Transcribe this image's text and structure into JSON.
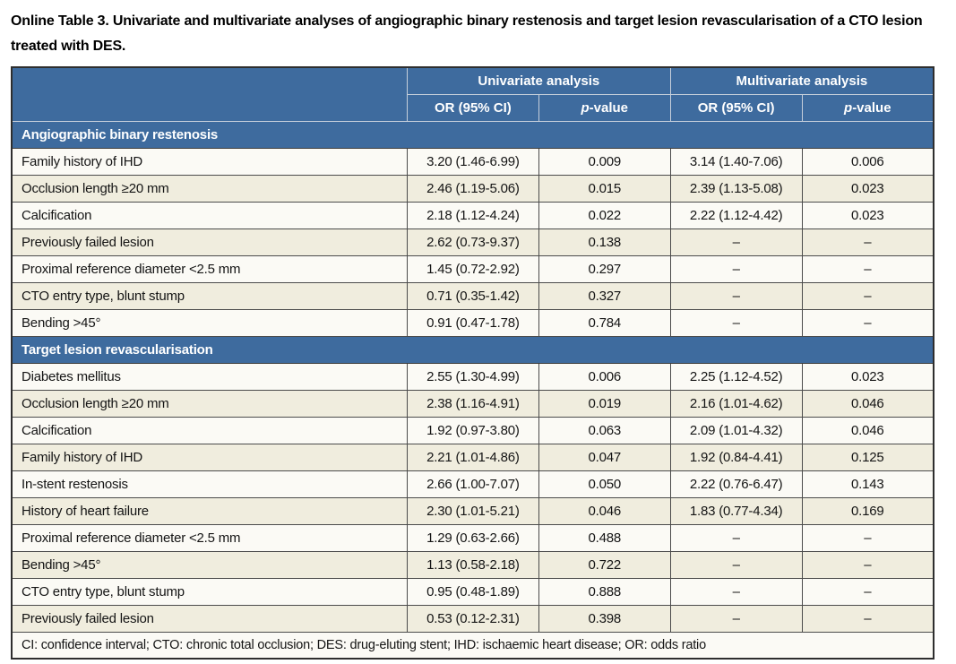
{
  "title": "Online Table 3. Univariate and multivariate analyses of angiographic binary restenosis and target lesion revascularisation of a CTO lesion treated with DES.",
  "table": {
    "group_headers": [
      "Univariate analysis",
      "Multivariate analysis"
    ],
    "column_headers": {
      "or": "OR (95% CI)",
      "p_italic": "p",
      "p_rest": "-value"
    },
    "sections": [
      {
        "label": "Angiographic binary restenosis",
        "rows": [
          {
            "label": "Family history of IHD",
            "uni_or": "3.20 (1.46-6.99)",
            "uni_p": "0.009",
            "multi_or": "3.14 (1.40-7.06)",
            "multi_p": "0.006"
          },
          {
            "label": "Occlusion length ≥20 mm",
            "uni_or": "2.46 (1.19-5.06)",
            "uni_p": "0.015",
            "multi_or": "2.39 (1.13-5.08)",
            "multi_p": "0.023"
          },
          {
            "label": "Calcification",
            "uni_or": "2.18 (1.12-4.24)",
            "uni_p": "0.022",
            "multi_or": "2.22 (1.12-4.42)",
            "multi_p": "0.023"
          },
          {
            "label": "Previously failed lesion",
            "uni_or": "2.62 (0.73-9.37)",
            "uni_p": "0.138",
            "multi_or": "–",
            "multi_p": "–"
          },
          {
            "label": "Proximal reference diameter <2.5 mm",
            "uni_or": "1.45 (0.72-2.92)",
            "uni_p": "0.297",
            "multi_or": "–",
            "multi_p": "–"
          },
          {
            "label": "CTO entry type, blunt stump",
            "uni_or": "0.71 (0.35-1.42)",
            "uni_p": "0.327",
            "multi_or": "–",
            "multi_p": "–"
          },
          {
            "label": "Bending >45°",
            "uni_or": "0.91 (0.47-1.78)",
            "uni_p": "0.784",
            "multi_or": "–",
            "multi_p": "–"
          }
        ]
      },
      {
        "label": "Target lesion revascularisation",
        "rows": [
          {
            "label": "Diabetes mellitus",
            "uni_or": "2.55 (1.30-4.99)",
            "uni_p": "0.006",
            "multi_or": "2.25 (1.12-4.52)",
            "multi_p": "0.023"
          },
          {
            "label": "Occlusion length ≥20 mm",
            "uni_or": "2.38 (1.16-4.91)",
            "uni_p": "0.019",
            "multi_or": "2.16 (1.01-4.62)",
            "multi_p": "0.046"
          },
          {
            "label": "Calcification",
            "uni_or": "1.92 (0.97-3.80)",
            "uni_p": "0.063",
            "multi_or": "2.09 (1.01-4.32)",
            "multi_p": "0.046"
          },
          {
            "label": "Family history of IHD",
            "uni_or": "2.21 (1.01-4.86)",
            "uni_p": "0.047",
            "multi_or": "1.92 (0.84-4.41)",
            "multi_p": "0.125"
          },
          {
            "label": "In-stent restenosis",
            "uni_or": "2.66 (1.00-7.07)",
            "uni_p": "0.050",
            "multi_or": "2.22 (0.76-6.47)",
            "multi_p": "0.143"
          },
          {
            "label": "History of heart failure",
            "uni_or": "2.30 (1.01-5.21)",
            "uni_p": "0.046",
            "multi_or": "1.83 (0.77-4.34)",
            "multi_p": "0.169"
          },
          {
            "label": "Proximal reference diameter <2.5 mm",
            "uni_or": "1.29 (0.63-2.66)",
            "uni_p": "0.488",
            "multi_or": "–",
            "multi_p": "–"
          },
          {
            "label": "Bending >45°",
            "uni_or": "1.13 (0.58-2.18)",
            "uni_p": "0.722",
            "multi_or": "–",
            "multi_p": "–"
          },
          {
            "label": "CTO entry type, blunt stump",
            "uni_or": "0.95 (0.48-1.89)",
            "uni_p": "0.888",
            "multi_or": "–",
            "multi_p": "–"
          },
          {
            "label": "Previously failed lesion",
            "uni_or": "0.53 (0.12-2.31)",
            "uni_p": "0.398",
            "multi_or": "–",
            "multi_p": "–"
          }
        ]
      }
    ],
    "footnote": "CI: confidence interval; CTO: chronic total occlusion; DES: drug-eluting stent; IHD: ischaemic heart disease; OR: odds ratio"
  },
  "colors": {
    "header_blue": "#3E6B9E",
    "row_white": "#FBFAF5",
    "row_beige": "#F0EDDE",
    "header_divider": "#C6CFDB",
    "grid_line": "#4B4B4B"
  }
}
